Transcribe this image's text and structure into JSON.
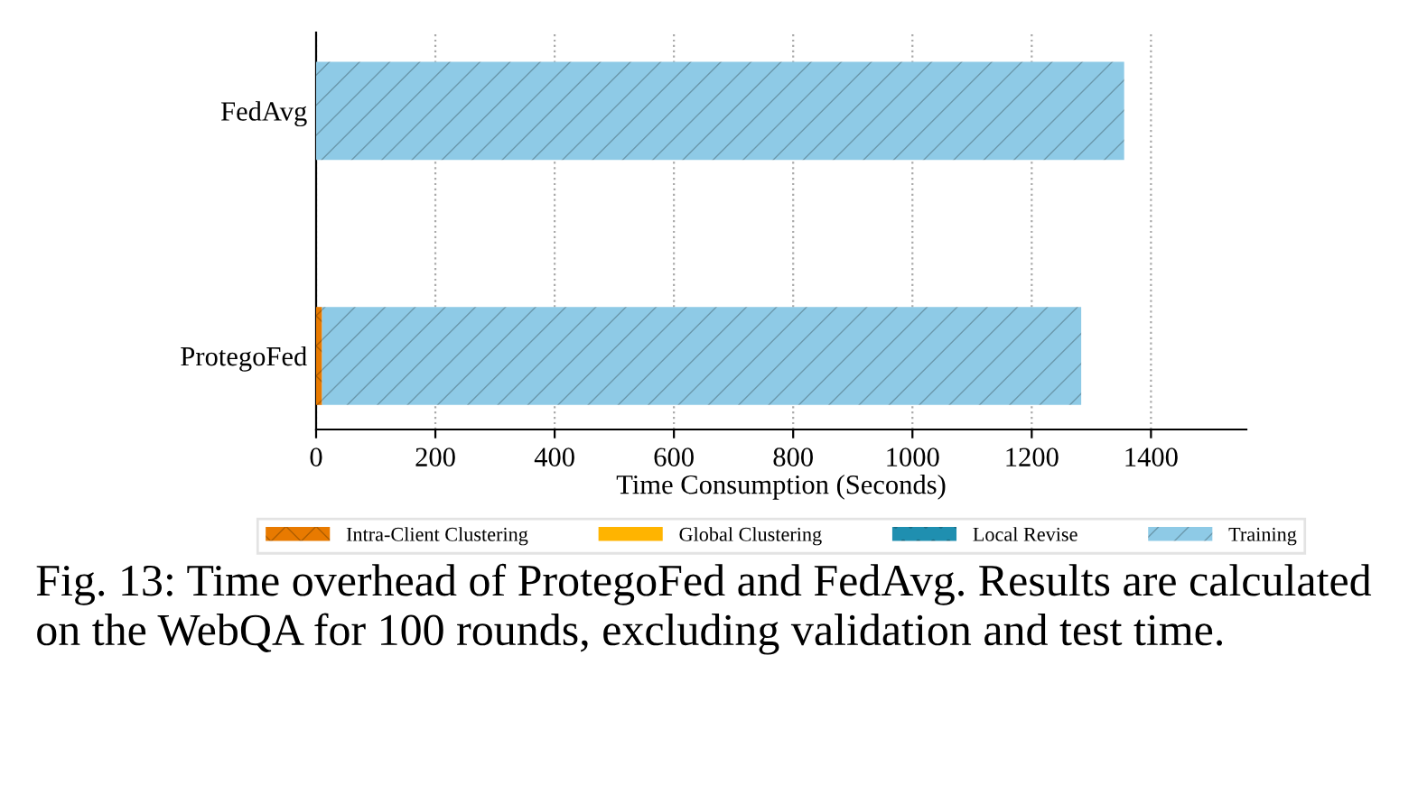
{
  "chart_data": {
    "type": "bar",
    "orientation": "horizontal",
    "stacked": true,
    "categories": [
      "FedAvg",
      "ProtegoFed"
    ],
    "series": [
      {
        "name": "Intra-Client Clustering",
        "color": "#e87a00",
        "values": [
          null,
          10
        ]
      },
      {
        "name": "Global Clustering",
        "color": "#ffb400",
        "values": [
          null,
          null
        ]
      },
      {
        "name": "Local Revise",
        "color": "#1f8fb0",
        "values": [
          null,
          null
        ]
      },
      {
        "name": "Training",
        "color": "#8ecae6",
        "values": [
          1355,
          1273
        ]
      }
    ],
    "xlim": [
      0,
      1560
    ],
    "xticks": [
      0,
      200,
      400,
      600,
      800,
      1000,
      1200,
      1400
    ],
    "xlabel": "Time Consumption (Seconds)",
    "grid": "x",
    "legend": "bottom",
    "annotations": [
      "Fig. 13: Time overhead of ProtegoFed and FedAvg. Results are calculated on the WebQA for 100 rounds, excluding validation and test time."
    ]
  }
}
